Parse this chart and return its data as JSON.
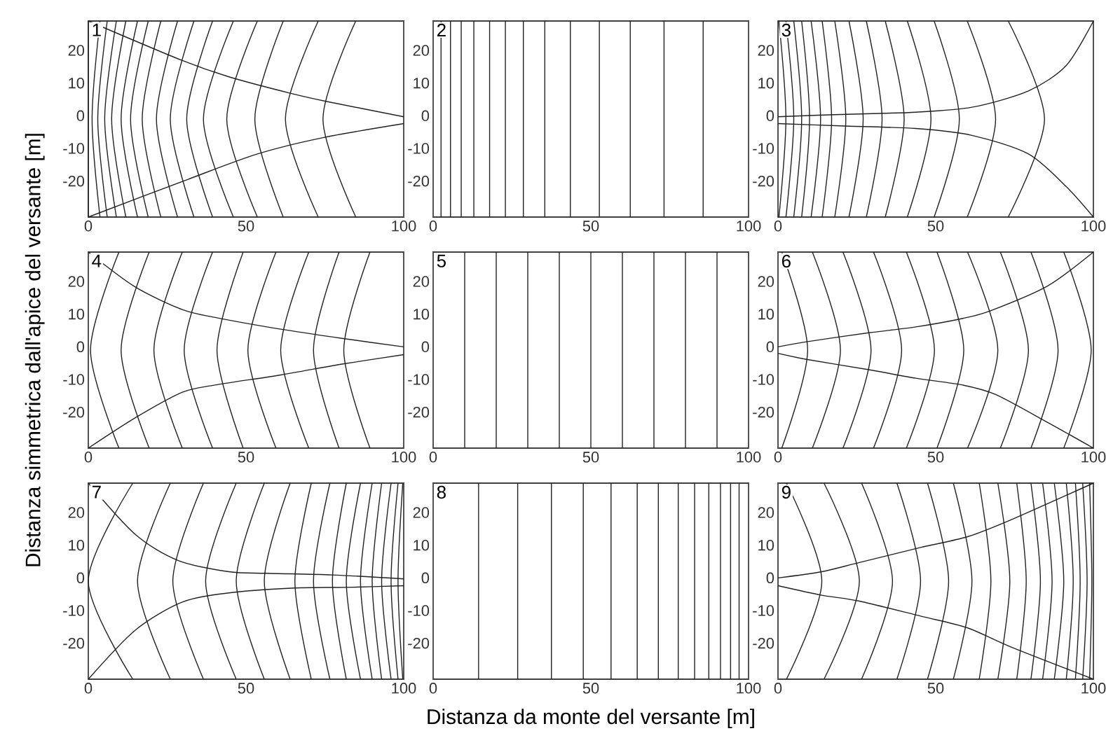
{
  "chart_data": [
    {
      "type": "line",
      "title": "1",
      "xlim": [
        0,
        100
      ],
      "ylim": [
        -31,
        29
      ],
      "xticks": [
        0,
        50,
        100
      ],
      "yticks": [
        -20,
        -10,
        0,
        10,
        20
      ],
      "color": "#222222",
      "series": [
        {
          "x": [
            0,
            29.8,
            44.6,
            64,
            75.9,
            100
          ],
          "values": [
            29,
            16.9,
            11.9,
            6.9,
            4.3,
            -0.3
          ]
        },
        {
          "x": [
            0,
            31.2,
            53.6,
            74.4,
            100
          ],
          "values": [
            -31,
            -19.6,
            -11.7,
            -6.7,
            -2.4
          ]
        },
        {
          "x": [
            0,
            0
          ],
          "values": [
            29,
            -31
          ]
        },
        {
          "x": [
            3.7,
            1.2,
            3.7
          ],
          "values": [
            29,
            -1,
            -31
          ]
        },
        {
          "x": [
            6,
            3,
            6
          ],
          "values": [
            29,
            -1,
            -31
          ]
        },
        {
          "x": [
            8.9,
            5.2,
            8.9
          ],
          "values": [
            29,
            -1,
            -31
          ]
        },
        {
          "x": [
            11.9,
            7.4,
            11.9
          ],
          "values": [
            29,
            -1,
            -31
          ]
        },
        {
          "x": [
            15.6,
            10.4,
            15.6
          ],
          "values": [
            29,
            -1,
            -31
          ]
        },
        {
          "x": [
            19,
            13.4,
            19
          ],
          "values": [
            29,
            -1,
            -31
          ]
        },
        {
          "x": [
            23,
            17.1,
            23
          ],
          "values": [
            29,
            -1,
            -31
          ]
        },
        {
          "x": [
            28.3,
            21.6,
            28.3
          ],
          "values": [
            29,
            -1,
            -31
          ]
        },
        {
          "x": [
            33.5,
            26,
            33.5
          ],
          "values": [
            29,
            -1,
            -31
          ]
        },
        {
          "x": [
            39.4,
            31.2,
            39.4
          ],
          "values": [
            29,
            -1,
            -31
          ]
        },
        {
          "x": [
            46,
            36.5,
            46
          ],
          "values": [
            29,
            -1,
            -31
          ]
        },
        {
          "x": [
            53.6,
            43.9,
            53.6
          ],
          "values": [
            29,
            -1,
            -31
          ]
        },
        {
          "x": [
            61.8,
            52.8,
            61.8
          ],
          "values": [
            29,
            -1,
            -31
          ]
        },
        {
          "x": [
            72.9,
            62.5,
            72.9
          ],
          "values": [
            29,
            -1,
            -31
          ]
        },
        {
          "x": [
            84.8,
            74.4,
            84.8
          ],
          "values": [
            29,
            -1,
            -31
          ]
        }
      ]
    },
    {
      "type": "line",
      "title": "2",
      "xlim": [
        0,
        100
      ],
      "ylim": [
        -31,
        29
      ],
      "xticks": [
        0,
        50,
        100
      ],
      "yticks": [
        -20,
        -10,
        0,
        10,
        20
      ],
      "color": "#222222",
      "series": [
        {
          "x": [
            2.5,
            2.5
          ],
          "values": [
            29,
            -31
          ]
        },
        {
          "x": [
            5.5,
            5.5
          ],
          "values": [
            29,
            -31
          ]
        },
        {
          "x": [
            8.9,
            8.9
          ],
          "values": [
            29,
            -31
          ]
        },
        {
          "x": [
            12.9,
            12.9
          ],
          "values": [
            29,
            -31
          ]
        },
        {
          "x": [
            17.9,
            17.9
          ],
          "values": [
            29,
            -31
          ]
        },
        {
          "x": [
            22.9,
            22.9
          ],
          "values": [
            29,
            -31
          ]
        },
        {
          "x": [
            28.6,
            28.6
          ],
          "values": [
            29,
            -31
          ]
        },
        {
          "x": [
            35.4,
            35.4
          ],
          "values": [
            29,
            -31
          ]
        },
        {
          "x": [
            43.5,
            43.5
          ],
          "values": [
            29,
            -31
          ]
        },
        {
          "x": [
            52.7,
            52.7
          ],
          "values": [
            29,
            -31
          ]
        },
        {
          "x": [
            62.5,
            62.5
          ],
          "values": [
            29,
            -31
          ]
        },
        {
          "x": [
            73.2,
            73.2
          ],
          "values": [
            29,
            -31
          ]
        },
        {
          "x": [
            85.6,
            85.6
          ],
          "values": [
            29,
            -31
          ]
        }
      ]
    },
    {
      "type": "line",
      "title": "3",
      "xlim": [
        0,
        100
      ],
      "ylim": [
        -31,
        29
      ],
      "xticks": [
        0,
        50,
        100
      ],
      "yticks": [
        -20,
        -10,
        0,
        10,
        20
      ],
      "color": "#222222",
      "series": [
        {
          "x": [
            0,
            19.8,
            43.7,
            61.5,
            79.4,
            91.4,
            100
          ],
          "values": [
            -0.3,
            0.4,
            1.1,
            2.6,
            7.6,
            15.4,
            29
          ]
        },
        {
          "x": [
            0,
            19.8,
            43.7,
            61.5,
            79.4,
            91.4,
            100
          ],
          "values": [
            -2.4,
            -3.1,
            -3.9,
            -6,
            -11.7,
            -21.7,
            -31
          ]
        },
        {
          "x": [
            0.3,
            2.5,
            0.3
          ],
          "values": [
            29,
            -1,
            -31
          ]
        },
        {
          "x": [
            2.5,
            5,
            2.5
          ],
          "values": [
            29,
            -1,
            -31
          ]
        },
        {
          "x": [
            5,
            7.5,
            5
          ],
          "values": [
            29,
            -1,
            -31
          ]
        },
        {
          "x": [
            7.5,
            10,
            7.5
          ],
          "values": [
            29,
            -1,
            -31
          ]
        },
        {
          "x": [
            10.5,
            13.5,
            10.5
          ],
          "values": [
            29,
            -1,
            -31
          ]
        },
        {
          "x": [
            14,
            17,
            14
          ],
          "values": [
            29,
            -1,
            -31
          ]
        },
        {
          "x": [
            18,
            21.5,
            18
          ],
          "values": [
            29,
            -1,
            -31
          ]
        },
        {
          "x": [
            22.5,
            27,
            22.5
          ],
          "values": [
            29,
            -1,
            -31
          ]
        },
        {
          "x": [
            28,
            33,
            28
          ],
          "values": [
            29,
            -1,
            -31
          ]
        },
        {
          "x": [
            34,
            40,
            34
          ],
          "values": [
            29,
            -1,
            -31
          ]
        },
        {
          "x": [
            41,
            48.5,
            41
          ],
          "values": [
            29,
            -1,
            -31
          ]
        },
        {
          "x": [
            49.5,
            57.5,
            49.5
          ],
          "values": [
            29,
            -1,
            -31
          ]
        },
        {
          "x": [
            60,
            69,
            60
          ],
          "values": [
            29,
            -1,
            -31
          ]
        },
        {
          "x": [
            73,
            84.5,
            73
          ],
          "values": [
            29,
            -1,
            -31
          ]
        }
      ]
    },
    {
      "type": "line",
      "title": "4",
      "ylabel": "Distanza simmetrica dall'apice del versante [m]",
      "xlim": [
        0,
        100
      ],
      "ylim": [
        -31,
        29
      ],
      "xticks": [
        0,
        50,
        100
      ],
      "yticks": [
        -20,
        -10,
        0,
        10,
        20
      ],
      "color": "#222222",
      "series": [
        {
          "x": [
            0,
            14.9,
            29.8,
            40.2,
            61,
            80.4,
            100
          ],
          "values": [
            29,
            18.3,
            11.4,
            9,
            5.4,
            2.6,
            0
          ]
        },
        {
          "x": [
            0,
            14.9,
            29.8,
            40.2,
            61,
            80.4,
            100
          ],
          "values": [
            -31,
            -21.7,
            -13.9,
            -11.7,
            -8.6,
            -5.3,
            -2.4
          ]
        },
        {
          "x": [
            9.7,
            0.7,
            9.7
          ],
          "values": [
            29,
            -1,
            -31
          ]
        },
        {
          "x": [
            19.3,
            10.4,
            19.3
          ],
          "values": [
            29,
            -1,
            -31
          ]
        },
        {
          "x": [
            29.8,
            20.8,
            29.8
          ],
          "values": [
            29,
            -1,
            -31
          ]
        },
        {
          "x": [
            39.4,
            30.4,
            39.4
          ],
          "values": [
            29,
            -1,
            -31
          ]
        },
        {
          "x": [
            49.1,
            40.8,
            49.1
          ],
          "values": [
            29,
            -1,
            -31
          ]
        },
        {
          "x": [
            59.5,
            50.6,
            59.5
          ],
          "values": [
            29,
            -1,
            -31
          ]
        },
        {
          "x": [
            69.9,
            61,
            69.9
          ],
          "values": [
            29,
            -1,
            -31
          ]
        },
        {
          "x": [
            79.5,
            71.4,
            79.5
          ],
          "values": [
            29,
            -1,
            -31
          ]
        },
        {
          "x": [
            89.3,
            81,
            89.3
          ],
          "values": [
            29,
            -1,
            -31
          ]
        }
      ]
    },
    {
      "type": "line",
      "title": "5",
      "xlim": [
        0,
        100
      ],
      "ylim": [
        -31,
        29
      ],
      "xticks": [
        0,
        50,
        100
      ],
      "yticks": [
        -20,
        -10,
        0,
        10,
        20
      ],
      "color": "#222222",
      "series": [
        {
          "x": [
            10,
            10
          ],
          "values": [
            29,
            -31
          ]
        },
        {
          "x": [
            20,
            20
          ],
          "values": [
            29,
            -31
          ]
        },
        {
          "x": [
            30,
            30
          ],
          "values": [
            29,
            -31
          ]
        },
        {
          "x": [
            40,
            40
          ],
          "values": [
            29,
            -31
          ]
        },
        {
          "x": [
            50,
            50
          ],
          "values": [
            29,
            -31
          ]
        },
        {
          "x": [
            60,
            60
          ],
          "values": [
            29,
            -31
          ]
        },
        {
          "x": [
            70,
            70
          ],
          "values": [
            29,
            -31
          ]
        },
        {
          "x": [
            80,
            80
          ],
          "values": [
            29,
            -31
          ]
        },
        {
          "x": [
            90,
            90
          ],
          "values": [
            29,
            -31
          ]
        }
      ]
    },
    {
      "type": "line",
      "title": "6",
      "xlim": [
        0,
        100
      ],
      "ylim": [
        -31,
        29
      ],
      "xticks": [
        0,
        50,
        100
      ],
      "yticks": [
        -20,
        -10,
        0,
        10,
        20
      ],
      "color": "#222222",
      "series": [
        {
          "x": [
            0,
            9.4,
            28.8,
            43.7,
            58.6,
            67.5,
            85.4,
            100
          ],
          "values": [
            0,
            1.6,
            4.3,
            6.1,
            8.7,
            11.1,
            18.6,
            29
          ]
        },
        {
          "x": [
            0,
            9.4,
            28.8,
            43.7,
            58.6,
            69,
            85.4,
            100
          ],
          "values": [
            -2,
            -3.9,
            -7,
            -9.6,
            -11.7,
            -14.6,
            -23.1,
            -31
          ]
        },
        {
          "x": [
            1.2,
            9.4,
            1.2
          ],
          "values": [
            29,
            -1,
            -31
          ]
        },
        {
          "x": [
            10.9,
            19.8,
            10.9
          ],
          "values": [
            29,
            -1,
            -31
          ]
        },
        {
          "x": [
            20.6,
            29.5,
            20.6
          ],
          "values": [
            29,
            -1,
            -31
          ]
        },
        {
          "x": [
            30.3,
            39.2,
            30.3
          ],
          "values": [
            29,
            -1,
            -31
          ]
        },
        {
          "x": [
            40.7,
            49.6,
            40.7
          ],
          "values": [
            29,
            -1,
            -31
          ]
        },
        {
          "x": [
            50.4,
            58.9,
            50.4
          ],
          "values": [
            29,
            -1,
            -31
          ]
        },
        {
          "x": [
            60.1,
            69.7,
            60.1
          ],
          "values": [
            29,
            -1,
            -31
          ]
        },
        {
          "x": [
            70.5,
            79.4,
            70.5
          ],
          "values": [
            29,
            -1,
            -31
          ]
        },
        {
          "x": [
            80.2,
            88.8,
            80.2
          ],
          "values": [
            29,
            -1,
            -31
          ]
        },
        {
          "x": [
            90.6,
            99.3,
            90.6
          ],
          "values": [
            29,
            -1,
            -31
          ]
        }
      ]
    },
    {
      "type": "line",
      "title": "7",
      "xlim": [
        0,
        100
      ],
      "ylim": [
        -31,
        29
      ],
      "xticks": [
        0,
        50,
        100
      ],
      "yticks": [
        -20,
        -10,
        0,
        10,
        20
      ],
      "color": "#222222",
      "series": [
        {
          "x": [
            0,
            14.9,
            28.3,
            44.6,
            56.5,
            77.4,
            100
          ],
          "values": [
            29,
            13.3,
            5.4,
            1.9,
            1.4,
            0.9,
            -0.3
          ]
        },
        {
          "x": [
            0,
            14.9,
            29.8,
            44.6,
            65.5,
            81.8,
            100
          ],
          "values": [
            -31,
            -16,
            -7.4,
            -4.6,
            -3.1,
            -2.9,
            -2.4
          ]
        },
        {
          "x": [
            14.1,
            0,
            14.1
          ],
          "values": [
            29,
            -1,
            -31
          ]
        },
        {
          "x": [
            26,
            15.6,
            26
          ],
          "values": [
            29,
            -1,
            -31
          ]
        },
        {
          "x": [
            36.5,
            26.8,
            36.5
          ],
          "values": [
            29,
            -1,
            -31
          ]
        },
        {
          "x": [
            46.9,
            37.2,
            46.9
          ],
          "values": [
            29,
            -1,
            -31
          ]
        },
        {
          "x": [
            55.8,
            46.9,
            55.8
          ],
          "values": [
            29,
            -1,
            -31
          ]
        },
        {
          "x": [
            64,
            55.8,
            64
          ],
          "values": [
            29,
            -1,
            -31
          ]
        },
        {
          "x": [
            70.7,
            65.5,
            70.7
          ],
          "values": [
            29,
            -1,
            -31
          ]
        },
        {
          "x": [
            76.6,
            71.4,
            76.6
          ],
          "values": [
            29,
            -1,
            -31
          ]
        },
        {
          "x": [
            81.8,
            77.4,
            81.8
          ],
          "values": [
            29,
            -1,
            -31
          ]
        },
        {
          "x": [
            86.3,
            81.8,
            86.3
          ],
          "values": [
            29,
            -1,
            -31
          ]
        },
        {
          "x": [
            90,
            86.3,
            90
          ],
          "values": [
            29,
            -1,
            -31
          ]
        },
        {
          "x": [
            93,
            90,
            93
          ],
          "values": [
            29,
            -1,
            -31
          ]
        },
        {
          "x": [
            96,
            93,
            96
          ],
          "values": [
            29,
            -1,
            -31
          ]
        },
        {
          "x": [
            98.2,
            96,
            98.2
          ],
          "values": [
            29,
            -1,
            -31
          ]
        },
        {
          "x": [
            99.7,
            98.2,
            99.7
          ],
          "values": [
            29,
            -1,
            -31
          ]
        }
      ]
    },
    {
      "type": "line",
      "title": "8",
      "xlabel": "Distanza da monte del versante [m]",
      "xlim": [
        0,
        100
      ],
      "ylim": [
        -31,
        29
      ],
      "xticks": [
        0,
        50,
        100
      ],
      "yticks": [
        -20,
        -10,
        0,
        10,
        20
      ],
      "color": "#222222",
      "series": [
        {
          "x": [
            14.4,
            14.4
          ],
          "values": [
            29,
            -31
          ]
        },
        {
          "x": [
            26.8,
            26.8
          ],
          "values": [
            29,
            -31
          ]
        },
        {
          "x": [
            37.5,
            37.5
          ],
          "values": [
            29,
            -31
          ]
        },
        {
          "x": [
            47.6,
            47.6
          ],
          "values": [
            29,
            -31
          ]
        },
        {
          "x": [
            56.4,
            56.4
          ],
          "values": [
            29,
            -31
          ]
        },
        {
          "x": [
            64.7,
            64.7
          ],
          "values": [
            29,
            -31
          ]
        },
        {
          "x": [
            71.4,
            71.4
          ],
          "values": [
            29,
            -31
          ]
        },
        {
          "x": [
            77.7,
            77.7
          ],
          "values": [
            29,
            -31
          ]
        },
        {
          "x": [
            82.9,
            82.9
          ],
          "values": [
            29,
            -31
          ]
        },
        {
          "x": [
            87.4,
            87.4
          ],
          "values": [
            29,
            -31
          ]
        },
        {
          "x": [
            91.1,
            91.1
          ],
          "values": [
            29,
            -31
          ]
        },
        {
          "x": [
            94.3,
            94.3
          ],
          "values": [
            29,
            -31
          ]
        },
        {
          "x": [
            97,
            97
          ],
          "values": [
            29,
            -31
          ]
        }
      ]
    },
    {
      "type": "line",
      "title": "9",
      "xlim": [
        0,
        100
      ],
      "ylim": [
        -31,
        29
      ],
      "xticks": [
        0,
        50,
        100
      ],
      "yticks": [
        -20,
        -10,
        0,
        10,
        20
      ],
      "color": "#222222",
      "series": [
        {
          "x": [
            0,
            13.9,
            25.8,
            45.2,
            60.1,
            73.5,
            100
          ],
          "values": [
            0,
            1.9,
            4.7,
            9.3,
            12.6,
            17.6,
            29
          ]
        },
        {
          "x": [
            0,
            13.9,
            25.8,
            45.2,
            60.1,
            73.5,
            100
          ],
          "values": [
            -2.4,
            -5.3,
            -7.1,
            -11.7,
            -15.3,
            -21,
            -31
          ]
        },
        {
          "x": [
            2.7,
            13.9,
            2.7
          ],
          "values": [
            29,
            -1,
            -31
          ]
        },
        {
          "x": [
            14.6,
            25.8,
            14.6
          ],
          "values": [
            29,
            -1,
            -31
          ]
        },
        {
          "x": [
            26.5,
            36.3,
            26.5
          ],
          "values": [
            29,
            -1,
            -31
          ]
        },
        {
          "x": [
            37.7,
            45.2,
            37.7
          ],
          "values": [
            29,
            -1,
            -31
          ]
        },
        {
          "x": [
            47.4,
            54.1,
            47.4
          ],
          "values": [
            29,
            -1,
            -31
          ]
        },
        {
          "x": [
            55.6,
            61.5,
            55.6
          ],
          "values": [
            29,
            -1,
            -31
          ]
        },
        {
          "x": [
            63.8,
            67.5,
            63.8
          ],
          "values": [
            29,
            -1,
            -31
          ]
        },
        {
          "x": [
            69.7,
            73.5,
            69.7
          ],
          "values": [
            29,
            -1,
            -31
          ]
        },
        {
          "x": [
            75.7,
            78.7,
            75.7
          ],
          "values": [
            29,
            -1,
            -31
          ]
        },
        {
          "x": [
            80.2,
            83.2,
            80.2
          ],
          "values": [
            29,
            -1,
            -31
          ]
        },
        {
          "x": [
            83.9,
            86.9,
            83.9
          ],
          "values": [
            29,
            -1,
            -31
          ]
        },
        {
          "x": [
            87.6,
            90.6,
            87.6
          ],
          "values": [
            29,
            -1,
            -31
          ]
        },
        {
          "x": [
            91.4,
            93.6,
            91.4
          ],
          "values": [
            29,
            -1,
            -31
          ]
        },
        {
          "x": [
            94.3,
            95.8,
            94.3
          ],
          "values": [
            29,
            -1,
            -31
          ]
        },
        {
          "x": [
            96.6,
            98,
            96.6
          ],
          "values": [
            29,
            -1,
            -31
          ]
        },
        {
          "x": [
            98.8,
            99.5,
            98.8
          ],
          "values": [
            29,
            -1,
            -31
          ]
        }
      ]
    }
  ]
}
